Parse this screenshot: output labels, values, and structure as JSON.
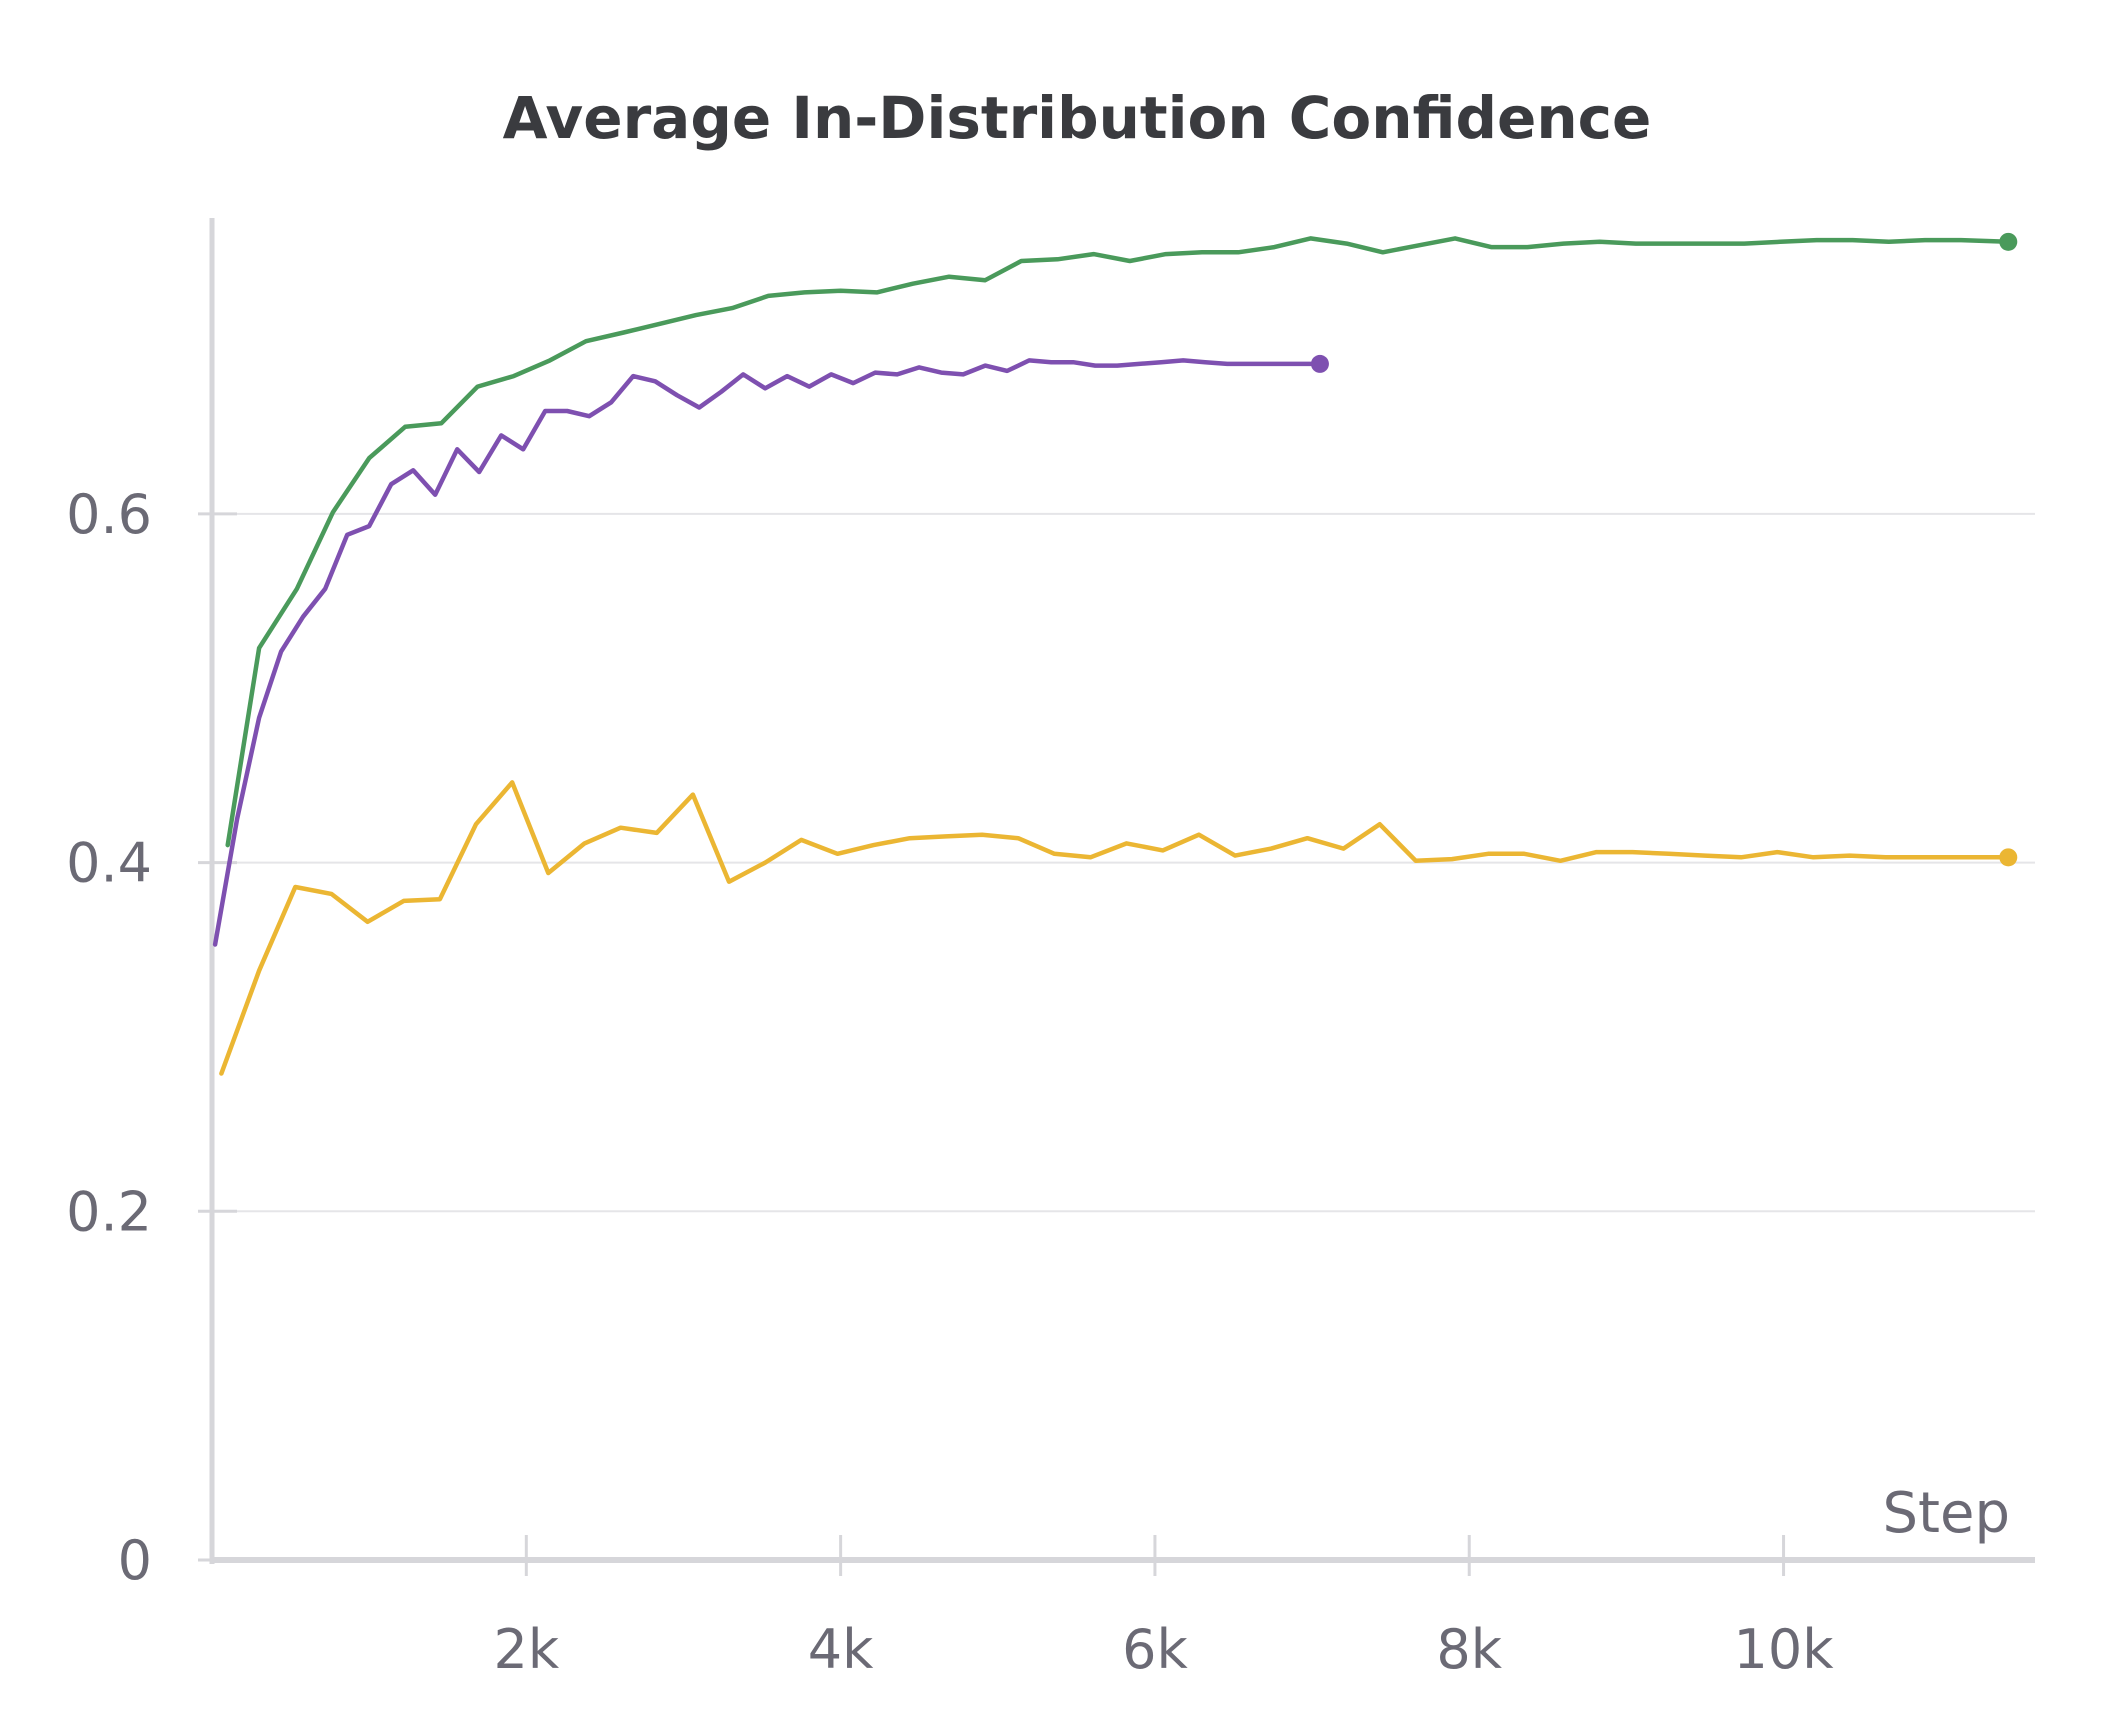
{
  "chart_data": {
    "type": "line",
    "title": "Average In-Distribution Confidence",
    "xlabel": "Step",
    "ylabel": "",
    "xlim": [
      0,
      11600
    ],
    "ylim": [
      0,
      0.78
    ],
    "grid": true,
    "x_ticks": [
      {
        "value": 2000,
        "label": "2k"
      },
      {
        "value": 4000,
        "label": "4k"
      },
      {
        "value": 6000,
        "label": "6k"
      },
      {
        "value": 8000,
        "label": "8k"
      },
      {
        "value": 10000,
        "label": "10k"
      }
    ],
    "y_ticks": [
      {
        "value": 0,
        "label": "0"
      },
      {
        "value": 0.2,
        "label": "0.2"
      },
      {
        "value": 0.4,
        "label": "0.4"
      },
      {
        "value": 0.6,
        "label": "0.6"
      }
    ],
    "colors": {
      "green": "#4a9a5b",
      "purple": "#7e50b0",
      "yellow": "#ebb633",
      "axis": "#d6d6da",
      "grid": "#e5e5e8"
    },
    "series": [
      {
        "color": "#4a9a5b",
        "end_marker": true,
        "points": [
          [
            100,
            0.41
          ],
          [
            300,
            0.523
          ],
          [
            540,
            0.557
          ],
          [
            770,
            0.601
          ],
          [
            1000,
            0.632
          ],
          [
            1230,
            0.65
          ],
          [
            1460,
            0.652
          ],
          [
            1690,
            0.673
          ],
          [
            1920,
            0.679
          ],
          [
            2150,
            0.688
          ],
          [
            2380,
            0.699
          ],
          [
            2620,
            0.704
          ],
          [
            2850,
            0.709
          ],
          [
            3080,
            0.714
          ],
          [
            3310,
            0.718
          ],
          [
            3540,
            0.725
          ],
          [
            3770,
            0.727
          ],
          [
            4000,
            0.728
          ],
          [
            4230,
            0.727
          ],
          [
            4460,
            0.732
          ],
          [
            4690,
            0.736
          ],
          [
            4920,
            0.734
          ],
          [
            5150,
            0.745
          ],
          [
            5380,
            0.746
          ],
          [
            5610,
            0.749
          ],
          [
            5840,
            0.745
          ],
          [
            6070,
            0.749
          ],
          [
            6300,
            0.75
          ],
          [
            6530,
            0.75
          ],
          [
            6760,
            0.753
          ],
          [
            6990,
            0.758
          ],
          [
            7220,
            0.755
          ],
          [
            7450,
            0.75
          ],
          [
            7680,
            0.754
          ],
          [
            7910,
            0.758
          ],
          [
            8140,
            0.753
          ],
          [
            8370,
            0.753
          ],
          [
            8600,
            0.755
          ],
          [
            8830,
            0.756
          ],
          [
            9060,
            0.755
          ],
          [
            9290,
            0.755
          ],
          [
            9520,
            0.755
          ],
          [
            9750,
            0.755
          ],
          [
            9980,
            0.756
          ],
          [
            10210,
            0.757
          ],
          [
            10440,
            0.757
          ],
          [
            10670,
            0.756
          ],
          [
            10900,
            0.757
          ],
          [
            11130,
            0.757
          ],
          [
            11430,
            0.756
          ]
        ]
      },
      {
        "color": "#7e50b0",
        "end_marker": true,
        "points": [
          [
            20,
            0.353
          ],
          [
            160,
            0.425
          ],
          [
            300,
            0.483
          ],
          [
            440,
            0.521
          ],
          [
            580,
            0.541
          ],
          [
            720,
            0.557
          ],
          [
            860,
            0.588
          ],
          [
            1000,
            0.593
          ],
          [
            1140,
            0.617
          ],
          [
            1280,
            0.625
          ],
          [
            1420,
            0.611
          ],
          [
            1560,
            0.637
          ],
          [
            1700,
            0.624
          ],
          [
            1840,
            0.645
          ],
          [
            1980,
            0.637
          ],
          [
            2120,
            0.659
          ],
          [
            2260,
            0.659
          ],
          [
            2400,
            0.656
          ],
          [
            2540,
            0.664
          ],
          [
            2680,
            0.679
          ],
          [
            2820,
            0.676
          ],
          [
            2960,
            0.668
          ],
          [
            3100,
            0.661
          ],
          [
            3240,
            0.67
          ],
          [
            3380,
            0.68
          ],
          [
            3520,
            0.672
          ],
          [
            3660,
            0.679
          ],
          [
            3800,
            0.673
          ],
          [
            3940,
            0.68
          ],
          [
            4080,
            0.675
          ],
          [
            4220,
            0.681
          ],
          [
            4360,
            0.68
          ],
          [
            4500,
            0.684
          ],
          [
            4640,
            0.681
          ],
          [
            4780,
            0.68
          ],
          [
            4920,
            0.685
          ],
          [
            5060,
            0.682
          ],
          [
            5200,
            0.688
          ],
          [
            5340,
            0.687
          ],
          [
            5480,
            0.687
          ],
          [
            5620,
            0.685
          ],
          [
            5760,
            0.685
          ],
          [
            5900,
            0.686
          ],
          [
            6040,
            0.687
          ],
          [
            6180,
            0.688
          ],
          [
            6320,
            0.687
          ],
          [
            6460,
            0.686
          ],
          [
            6600,
            0.686
          ],
          [
            6740,
            0.686
          ],
          [
            7050,
            0.686
          ]
        ]
      },
      {
        "color": "#ebb633",
        "end_marker": true,
        "points": [
          [
            60,
            0.279
          ],
          [
            300,
            0.338
          ],
          [
            530,
            0.386
          ],
          [
            760,
            0.382
          ],
          [
            990,
            0.366
          ],
          [
            1220,
            0.378
          ],
          [
            1450,
            0.379
          ],
          [
            1680,
            0.422
          ],
          [
            1910,
            0.446
          ],
          [
            2140,
            0.394
          ],
          [
            2370,
            0.411
          ],
          [
            2600,
            0.42
          ],
          [
            2830,
            0.417
          ],
          [
            3060,
            0.439
          ],
          [
            3290,
            0.389
          ],
          [
            3520,
            0.4
          ],
          [
            3750,
            0.413
          ],
          [
            3980,
            0.405
          ],
          [
            4210,
            0.41
          ],
          [
            4440,
            0.414
          ],
          [
            4670,
            0.415
          ],
          [
            4900,
            0.416
          ],
          [
            5130,
            0.414
          ],
          [
            5360,
            0.405
          ],
          [
            5590,
            0.403
          ],
          [
            5820,
            0.411
          ],
          [
            6050,
            0.407
          ],
          [
            6280,
            0.416
          ],
          [
            6510,
            0.404
          ],
          [
            6740,
            0.408
          ],
          [
            6970,
            0.414
          ],
          [
            7200,
            0.408
          ],
          [
            7430,
            0.422
          ],
          [
            7660,
            0.401
          ],
          [
            7890,
            0.402
          ],
          [
            8120,
            0.405
          ],
          [
            8350,
            0.405
          ],
          [
            8580,
            0.401
          ],
          [
            8810,
            0.406
          ],
          [
            9040,
            0.406
          ],
          [
            9270,
            0.405
          ],
          [
            9500,
            0.404
          ],
          [
            9730,
            0.403
          ],
          [
            9960,
            0.406
          ],
          [
            10190,
            0.403
          ],
          [
            10420,
            0.404
          ],
          [
            10650,
            0.403
          ],
          [
            10880,
            0.403
          ],
          [
            11110,
            0.403
          ],
          [
            11430,
            0.403
          ]
        ]
      }
    ]
  }
}
